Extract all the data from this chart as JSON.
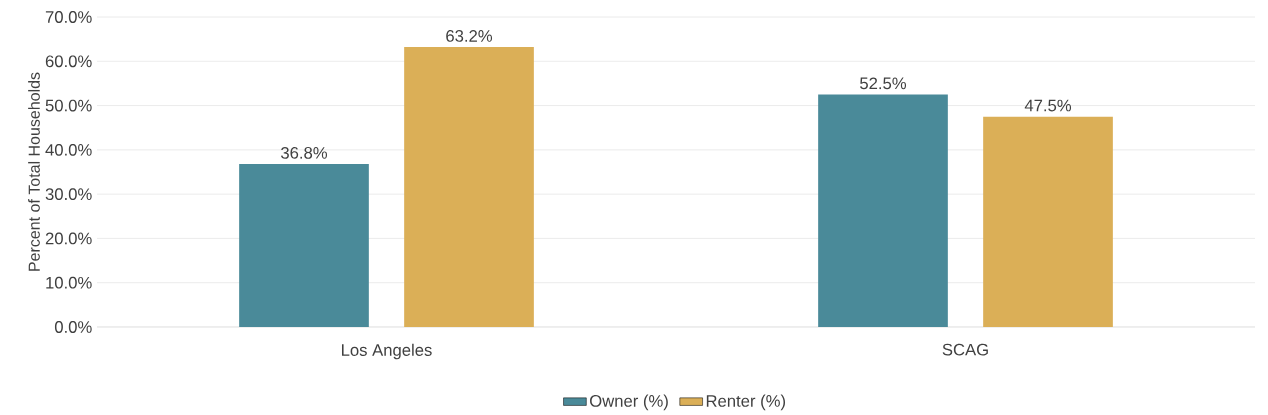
{
  "chart_data": {
    "type": "bar",
    "ylabel": "Percent of Total Households",
    "categories": [
      "Los Angeles",
      "SCAG"
    ],
    "series": [
      {
        "name": "Owner (%)",
        "color": "#4a8a99",
        "values": [
          36.8,
          52.5
        ],
        "value_labels": [
          "36.8%",
          "52.5%"
        ]
      },
      {
        "name": "Renter (%)",
        "color": "#dbaf57",
        "values": [
          63.2,
          47.5
        ],
        "value_labels": [
          "63.2%",
          "47.5%"
        ]
      }
    ],
    "ylim": [
      0,
      70
    ],
    "yticks": [
      {
        "value": 0,
        "label": "0.0%"
      },
      {
        "value": 10,
        "label": "10.0%"
      },
      {
        "value": 20,
        "label": "20.0%"
      },
      {
        "value": 30,
        "label": "30.0%"
      },
      {
        "value": 40,
        "label": "40.0%"
      },
      {
        "value": 50,
        "label": "50.0%"
      },
      {
        "value": 60,
        "label": "60.0%"
      },
      {
        "value": 70,
        "label": "70.0%"
      }
    ],
    "grid": "y",
    "legend": "bottom"
  }
}
